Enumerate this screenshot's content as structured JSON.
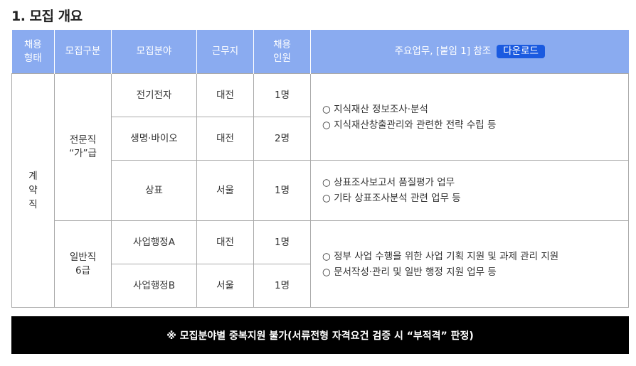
{
  "title": "1. 모집 개요",
  "headers": {
    "type": "채용\n형태",
    "category": "모집구분",
    "field": "모집분야",
    "location": "근무지",
    "count": "채용\n인원",
    "duty": "주요업무, [붙임 1] 참조",
    "download": "다운로드"
  },
  "employment_type": "계\n약\n직",
  "groups": [
    {
      "category": "전문직\n“가”급"
    },
    {
      "category": "일반직\n6급"
    }
  ],
  "rows": [
    {
      "field": "전기전자",
      "location": "대전",
      "count": "1명"
    },
    {
      "field": "생명·바이오",
      "location": "대전",
      "count": "2명"
    },
    {
      "field": "상표",
      "location": "서울",
      "count": "1명"
    },
    {
      "field": "사업행정A",
      "location": "대전",
      "count": "1명"
    },
    {
      "field": "사업행정B",
      "location": "서울",
      "count": "1명"
    }
  ],
  "duties": [
    [
      "○ 지식재산 정보조사·분석",
      "○ 지식재산창출관리와 관련한 전략 수립 등"
    ],
    [
      "○ 상표조사보고서 품질평가 업무",
      "○ 기타 상표조사분석 관련 업무 등"
    ],
    [
      "○ 정부 사업 수행을 위한 사업 기획 지원 및 과제 관리 지원",
      "○ 문서작성·관리 및 일반 행정 지원 업무 등"
    ]
  ],
  "notice": "※ 모집분야별 중복지원 불가(서류전형 자격요건 검증 시 “부적격” 판정)",
  "colors": {
    "header": "#8aabf0",
    "download_button": "#1a5ae0",
    "banner": "#000000"
  }
}
